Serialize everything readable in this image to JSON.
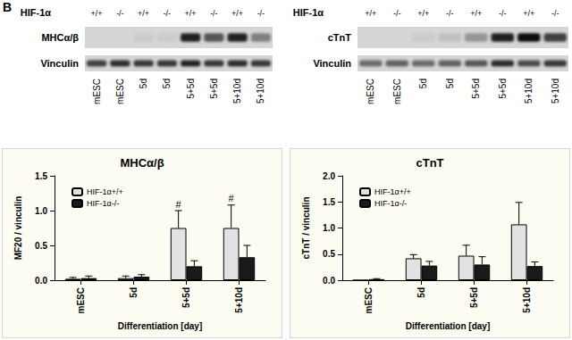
{
  "panel_label": "B",
  "blots": [
    {
      "header": "HIF-1α",
      "genotypes": [
        "+/+",
        "-/-",
        "+/+",
        "-/-",
        "+/+",
        "-/-",
        "+/+",
        "-/-"
      ],
      "lanes": [
        "mESC",
        "mESC",
        "5d",
        "5d",
        "5+5d",
        "5+5d",
        "5+10d",
        "5+10d"
      ],
      "rows": [
        {
          "label": "MHCα/β",
          "band_intensity": [
            0,
            0,
            0.05,
            0.05,
            0.85,
            0.6,
            0.85,
            0.4
          ]
        },
        {
          "label": "Vinculin",
          "band_intensity": [
            0.7,
            0.8,
            0.75,
            0.75,
            0.85,
            0.75,
            0.8,
            0.75
          ]
        }
      ]
    },
    {
      "header": "HIF-1α",
      "genotypes": [
        "+/+",
        "-/-",
        "+/+",
        "-/-",
        "+/+",
        "-/-",
        "+/+",
        "-/-"
      ],
      "lanes": [
        "mESC",
        "mESC",
        "5d",
        "5d",
        "5+5d",
        "5+5d",
        "5+10d",
        "5+10d"
      ],
      "rows": [
        {
          "label": "cTnT",
          "band_intensity": [
            0,
            0,
            0.05,
            0.1,
            0.3,
            0.85,
            0.95,
            0.7
          ]
        },
        {
          "label": "Vinculin",
          "band_intensity": [
            0.5,
            0.55,
            0.5,
            0.55,
            0.6,
            0.8,
            0.65,
            0.75
          ]
        }
      ]
    }
  ],
  "chart_data": [
    {
      "type": "bar",
      "title": "MHCα/β",
      "xlabel": "Differentiation [day]",
      "ylabel": "MF20 / vinculin",
      "categories": [
        "mESC",
        "5d",
        "5+5d",
        "5+10d"
      ],
      "series": [
        {
          "name": "HIF-1α+/+",
          "color": "#e2e2e2",
          "values": [
            0.02,
            0.03,
            0.75,
            0.75
          ],
          "errors": [
            0.02,
            0.03,
            0.25,
            0.33
          ],
          "marks": [
            null,
            null,
            "#",
            "#"
          ]
        },
        {
          "name": "HIF-1α-/-",
          "color": "#1a1a1a",
          "values": [
            0.03,
            0.05,
            0.2,
            0.33
          ],
          "errors": [
            0.03,
            0.03,
            0.08,
            0.17
          ]
        }
      ],
      "ylim": [
        0,
        1.5
      ],
      "yticks": [
        {
          "value": 0,
          "label": "0.0"
        },
        {
          "value": 0.5,
          "label": "0.5"
        },
        {
          "value": 1,
          "label": "1.0"
        },
        {
          "value": 1.5,
          "label": "1.5"
        }
      ],
      "grid": false,
      "legend": "upper left"
    },
    {
      "type": "bar",
      "title": "cTnT",
      "xlabel": "Differentiation [day]",
      "ylabel": "cTnT / vinculin",
      "categories": [
        "mESC",
        "5d",
        "5+5d",
        "5+10d"
      ],
      "series": [
        {
          "name": "HIF-1α+/+",
          "color": "#e2e2e2",
          "values": [
            0,
            0.42,
            0.47,
            1.07
          ],
          "errors": [
            null,
            0.07,
            0.2,
            0.42
          ]
        },
        {
          "name": "HIF-1α-/-",
          "color": "#1a1a1a",
          "values": [
            0.02,
            0.28,
            0.3,
            0.27
          ],
          "errors": [
            0.01,
            0.08,
            0.15,
            0.08
          ]
        }
      ],
      "ylim": [
        0,
        2
      ],
      "yticks": [
        {
          "value": 0,
          "label": "0.0"
        },
        {
          "value": 0.5,
          "label": "0.5"
        },
        {
          "value": 1,
          "label": "1.0"
        },
        {
          "value": 1.5,
          "label": "1.5"
        },
        {
          "value": 2,
          "label": "2.0"
        }
      ],
      "grid": false,
      "legend": "upper left"
    }
  ]
}
